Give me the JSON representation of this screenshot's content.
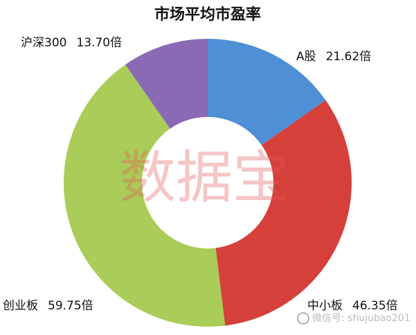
{
  "chart_data": {
    "type": "donut",
    "title": "市场平均市盈率",
    "categories": [
      "A股",
      "中小板",
      "创业板",
      "沪深300"
    ],
    "values": [
      21.62,
      46.35,
      59.75,
      13.7
    ],
    "value_labels": [
      "21.62倍",
      "46.35倍",
      "59.75倍",
      "13.70倍"
    ],
    "colors": [
      "#4f8fd6",
      "#d6403b",
      "#a9cd58",
      "#8a6ab4"
    ],
    "watermark": "数据宝",
    "footer": "微信号: shujubao201"
  }
}
